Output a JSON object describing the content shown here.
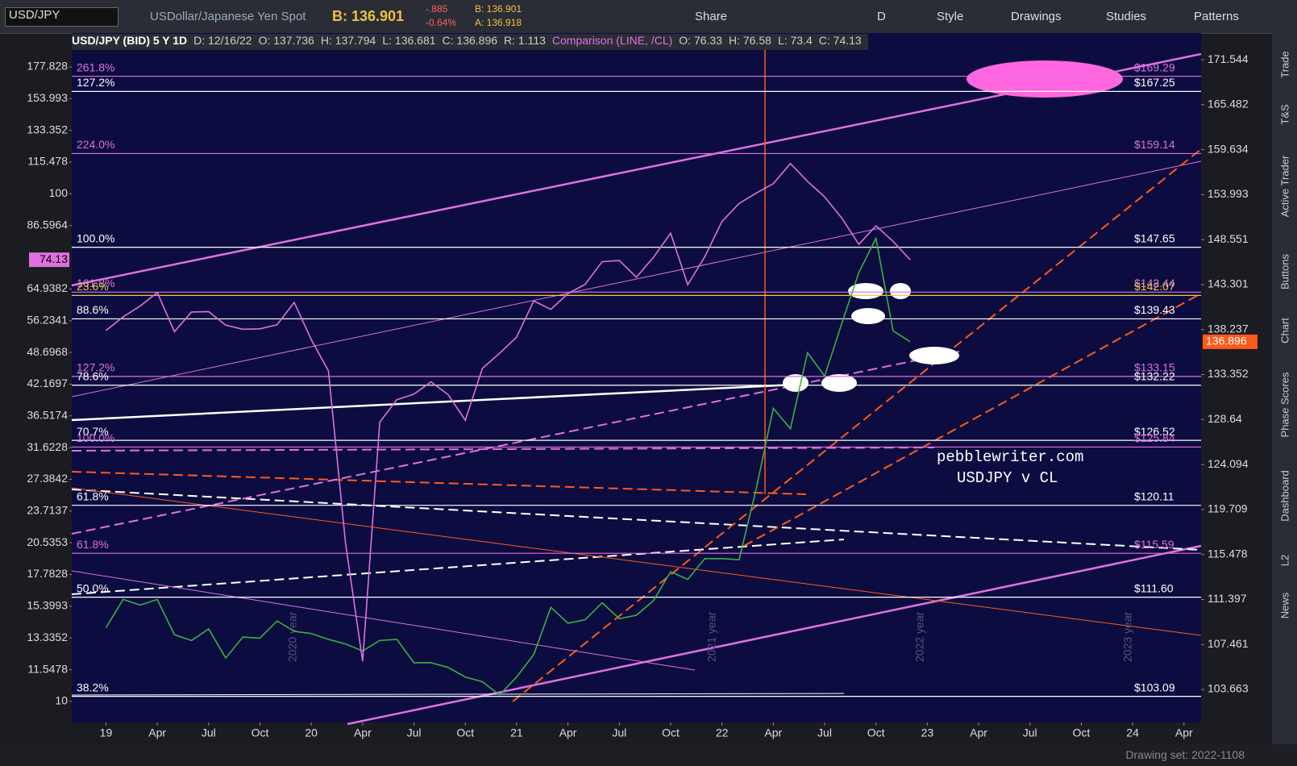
{
  "toolbar": {
    "symbol": "USD/JPY",
    "description": "USDollar/Japanese Yen Spot",
    "bid": "B: 136.901",
    "change": "-.885",
    "change_pct": "-0.64%",
    "bid_small": "B: 136.901",
    "ask_small": "A: 136.918",
    "interval": "D",
    "buttons": [
      "Share",
      "Style",
      "Drawings",
      "Studies",
      "Patterns"
    ]
  },
  "info_bar": {
    "title": "USD/JPY (BID) 5 Y 1D",
    "date": "D: 12/16/22",
    "ohlc": [
      "O: 137.736",
      "H: 137.794",
      "L: 136.681",
      "C: 136.896",
      "R: 1.113"
    ],
    "comparison": "Comparison (LINE, /CL)",
    "comparison_ohlc": [
      "O: 76.33",
      "H: 76.58",
      "L: 73.4",
      "C: 74.13"
    ]
  },
  "side_tabs": [
    "Trade",
    "T&S",
    "Active Trader",
    "Buttons",
    "Chart",
    "Phase Scores",
    "Dashboard",
    "L2",
    "News"
  ],
  "footer": {
    "drawing_set": "Drawing set: 2022-1108"
  },
  "chart_data": {
    "type": "line",
    "log_scale": true,
    "x": [
      "2019-01",
      "2019-02",
      "2019-03",
      "2019-04",
      "2019-05",
      "2019-06",
      "2019-07",
      "2019-08",
      "2019-09",
      "2019-10",
      "2019-11",
      "2019-12",
      "2020-01",
      "2020-02",
      "2020-03",
      "2020-04",
      "2020-05",
      "2020-06",
      "2020-07",
      "2020-08",
      "2020-09",
      "2020-10",
      "2020-11",
      "2020-12",
      "2021-01",
      "2021-02",
      "2021-03",
      "2021-04",
      "2021-05",
      "2021-06",
      "2021-07",
      "2021-08",
      "2021-09",
      "2021-10",
      "2021-11",
      "2021-12",
      "2022-01",
      "2022-02",
      "2022-03",
      "2022-04",
      "2022-05",
      "2022-06",
      "2022-07",
      "2022-08",
      "2022-09",
      "2022-10",
      "2022-11",
      "2022-12"
    ],
    "series": [
      {
        "color": "#3cb043",
        "axis": "y2",
        "values": [
          108.9,
          111.4,
          110.9,
          111.4,
          108.3,
          107.8,
          108.8,
          106.3,
          108.1,
          108.0,
          109.5,
          108.6,
          108.4,
          107.9,
          107.5,
          106.9,
          107.8,
          107.9,
          105.9,
          105.9,
          105.5,
          104.7,
          104.3,
          103.2,
          104.7,
          106.6,
          110.7,
          109.3,
          109.6,
          111.1,
          109.7,
          110.0,
          111.3,
          113.9,
          113.2,
          115.1,
          115.1,
          115.0,
          121.7,
          129.8,
          127.7,
          135.7,
          133.2,
          138.9,
          144.7,
          148.7,
          138.1,
          136.9
        ]
      },
      {
        "color": "#e070e0",
        "values": [
          53.8,
          57.2,
          60.1,
          63.9,
          53.5,
          58.5,
          58.6,
          55.1,
          54.1,
          54.2,
          55.2,
          61.1,
          51.6,
          44.8,
          20.5,
          12,
          35.5,
          39.3,
          40.3,
          42.6,
          40.2,
          35.8,
          45.3,
          48.5,
          52.2,
          61.5,
          59.2,
          63.6,
          66.3,
          73.5,
          73.9,
          68.5,
          75.0,
          83.6,
          66.2,
          75.2,
          88.2,
          95.7,
          100.3,
          104.7,
          114.7,
          105.8,
          98.6,
          89.6,
          79.5,
          86.5,
          80.6,
          74.13
        ]
      }
    ],
    "ylim": [
      9.09,
      207.3
    ],
    "yticks": [
      177.828,
      153.993,
      133.352,
      115.478,
      100,
      86.5964,
      64.9382,
      56.2341,
      48.6968,
      42.1697,
      36.5174,
      31.6228,
      27.3842,
      23.7137,
      20.5353,
      17.7828,
      15.3993,
      13.3352,
      11.5478,
      10
    ],
    "y_last": 74.13,
    "y2lim": [
      100.96,
      175.24
    ],
    "y2ticks": [
      171.544,
      165.482,
      159.634,
      153.993,
      148.551,
      143.301,
      138.237,
      133.352,
      128.64,
      124.094,
      119.709,
      115.478,
      111.397,
      107.461,
      103.663
    ],
    "y2_last": {
      "value": 136.896,
      "label": "136.896"
    },
    "xlim": [
      "2018-11",
      "2024-05"
    ],
    "xticks": [
      {
        "value": "2019-01",
        "label": "19"
      },
      {
        "value": "2019-04",
        "label": "Apr"
      },
      {
        "value": "2019-07",
        "label": "Jul"
      },
      {
        "value": "2019-10",
        "label": "Oct"
      },
      {
        "value": "2020-01",
        "label": "20"
      },
      {
        "value": "2020-04",
        "label": "Apr"
      },
      {
        "value": "2020-07",
        "label": "Jul"
      },
      {
        "value": "2020-10",
        "label": "Oct"
      },
      {
        "value": "2021-01",
        "label": "21"
      },
      {
        "value": "2021-04",
        "label": "Apr"
      },
      {
        "value": "2021-07",
        "label": "Jul"
      },
      {
        "value": "2021-10",
        "label": "Oct"
      },
      {
        "value": "2022-01",
        "label": "22"
      },
      {
        "value": "2022-04",
        "label": "Apr"
      },
      {
        "value": "2022-07",
        "label": "Jul"
      },
      {
        "value": "2022-10",
        "label": "Oct"
      },
      {
        "value": "2023-01",
        "label": "23"
      },
      {
        "value": "2023-04",
        "label": "Apr"
      },
      {
        "value": "2023-07",
        "label": "Jul"
      },
      {
        "value": "2023-10",
        "label": "Oct"
      },
      {
        "value": "2024-01",
        "label": "24"
      },
      {
        "value": "2024-04",
        "label": "Apr"
      }
    ],
    "fib_levels": {
      "values": [
        169.29,
        167.25,
        159.14,
        147.65,
        142.44,
        142.07,
        139.43,
        133.15,
        132.22,
        126.52,
        125.84,
        120.11,
        115.59,
        111.6,
        103.09
      ],
      "value_labels": [
        "$169.29",
        "$167.25",
        "$159.14",
        "$147.65",
        "$142.44",
        "$142.07",
        "$139.43",
        "$133.15",
        "$132.22",
        "$126.52",
        "$125.84",
        "$120.11",
        "$115.59",
        "$111.60",
        "$103.09"
      ],
      "left_labels": [
        "261.8%",
        "127.2%",
        "224.0%",
        "100.0%",
        "161.8%",
        "23.6%",
        "88.6%",
        "127.2%",
        "78.6%",
        "70.7%",
        "100.0%",
        "61.8%",
        "61.8%",
        "50.0%",
        "38.2%"
      ],
      "colors": [
        "#e070e0",
        "#ffffff",
        "#e070e0",
        "#ffffff",
        "#e070e0",
        "#e0d040",
        "#ffffff",
        "#e070e0",
        "#ffffff",
        "#ffffff",
        "#e070e0",
        "#ffffff",
        "#e070e0",
        "#ffffff",
        "#ffffff"
      ]
    },
    "annotations": [
      "pebblewriter.com",
      "USDJPY v CL"
    ],
    "year_marks": [
      "2020 year",
      "2021 year",
      "2022 year",
      "2023 year"
    ]
  }
}
